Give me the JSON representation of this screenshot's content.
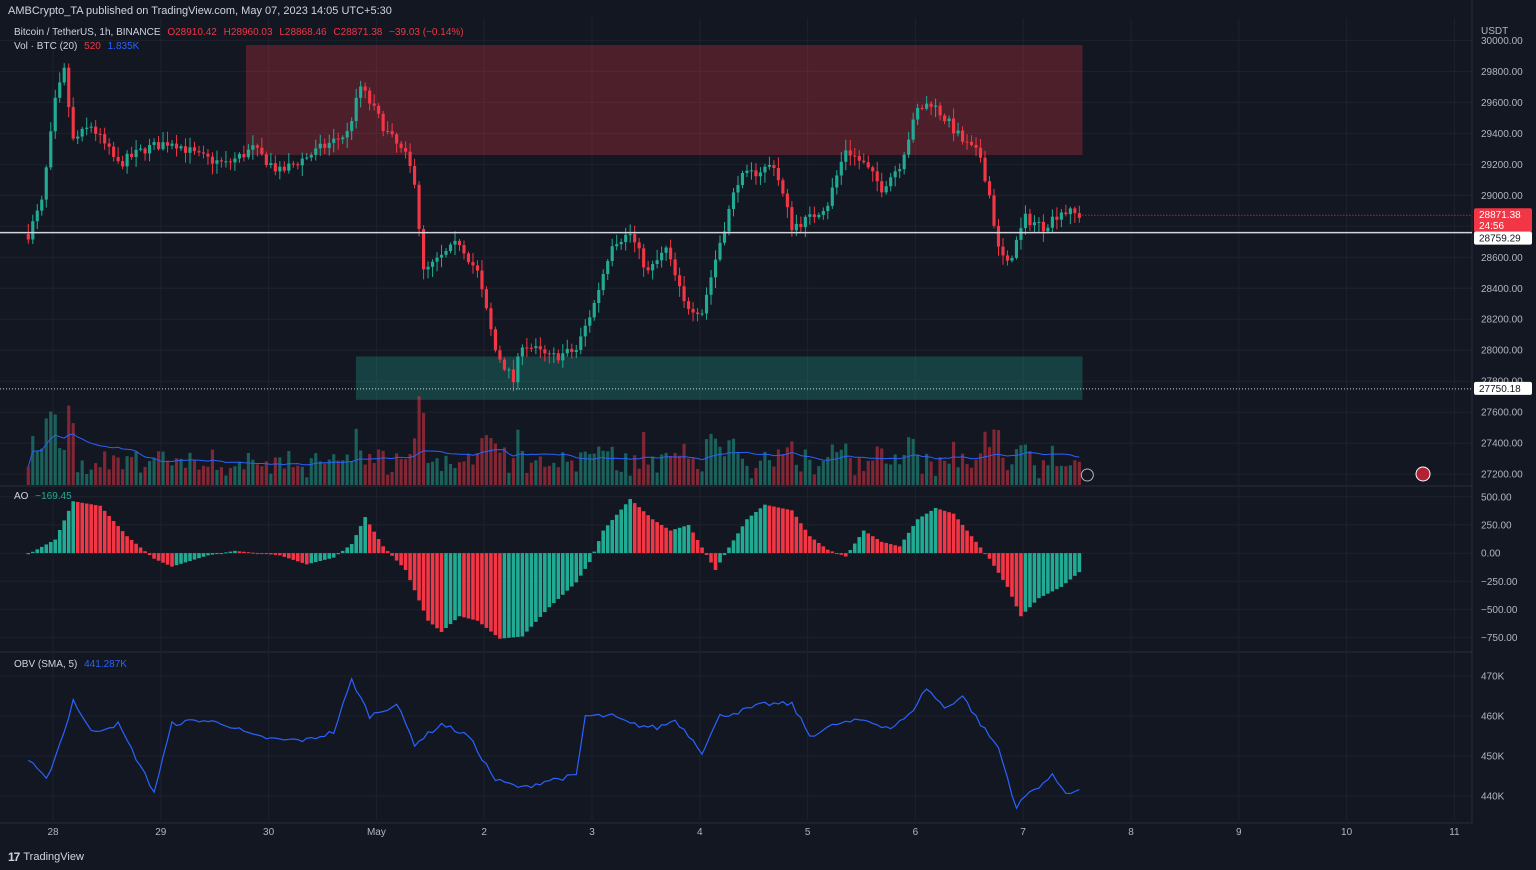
{
  "header": {
    "published": "AMBCrypto_TA published on TradingView.com, May 07, 2023 14:05 UTC+5:30"
  },
  "symbol_legend": {
    "name": "Bitcoin / TetherUS, 1h, BINANCE",
    "open": "O28910.42",
    "high": "H28960.03",
    "low": "L28868.46",
    "close": "C28871.38",
    "change": "−39.03 (−0.14%)"
  },
  "vol_legend": {
    "name": "Vol · BTC (20)",
    "v1": "520",
    "v2": "1.835K"
  },
  "ao_legend": {
    "name": "AO",
    "value": "−169.45"
  },
  "obv_legend": {
    "name": "OBV (SMA, 5)",
    "value": "441.287K"
  },
  "footer": {
    "brand": "TradingView"
  },
  "colors": {
    "up": "#22ab94",
    "down": "#f23645",
    "bg": "#131722",
    "grid": "#1e222d",
    "line": "#2962ff"
  },
  "chart_data": [
    {
      "type": "candlestick",
      "y_axis_unit": "USDT",
      "x_ticks": [
        "28",
        "29",
        "30",
        "May",
        "2",
        "3",
        "4",
        "5",
        "6",
        "7",
        "8",
        "9",
        "10",
        "11"
      ],
      "y_ticks": [
        "30000.00",
        "29800.00",
        "29600.00",
        "29400.00",
        "29200.00",
        "29000.00",
        "28800.00",
        "28600.00",
        "28400.00",
        "28200.00",
        "28000.00",
        "27800.00",
        "27600.00",
        "27400.00",
        "27200.00"
      ],
      "ylim": [
        27130,
        30080
      ],
      "price_labels": {
        "last": "28871.38",
        "countdown": "24:56",
        "level": "28759.29",
        "low_level": "27750.18"
      },
      "zones": [
        {
          "name": "resistance",
          "from_day": 2.79,
          "to_day": 10.55,
          "y_low": 29260,
          "y_high": 29970,
          "color": "#f23645"
        },
        {
          "name": "support",
          "from_day": 3.81,
          "to_day": 10.55,
          "y_low": 27680,
          "y_high": 27960,
          "color": "#22ab94"
        }
      ],
      "anchors": [
        {
          "t": 0,
          "p": 28750
        },
        {
          "t": 3,
          "p": 28950
        },
        {
          "t": 6,
          "p": 29600
        },
        {
          "t": 8,
          "p": 29800
        },
        {
          "t": 10,
          "p": 29350
        },
        {
          "t": 14,
          "p": 29450
        },
        {
          "t": 20,
          "p": 29200
        },
        {
          "t": 26,
          "p": 29300
        },
        {
          "t": 32,
          "p": 29350
        },
        {
          "t": 38,
          "p": 29250
        },
        {
          "t": 44,
          "p": 29200
        },
        {
          "t": 50,
          "p": 29300
        },
        {
          "t": 56,
          "p": 29150
        },
        {
          "t": 62,
          "p": 29250
        },
        {
          "t": 68,
          "p": 29350
        },
        {
          "t": 71,
          "p": 29400
        },
        {
          "t": 74,
          "p": 29700
        },
        {
          "t": 77,
          "p": 29550
        },
        {
          "t": 80,
          "p": 29400
        },
        {
          "t": 84,
          "p": 29250
        },
        {
          "t": 86,
          "p": 29100
        },
        {
          "t": 88,
          "p": 28500
        },
        {
          "t": 92,
          "p": 28600
        },
        {
          "t": 96,
          "p": 28700
        },
        {
          "t": 100,
          "p": 28500
        },
        {
          "t": 104,
          "p": 28000
        },
        {
          "t": 108,
          "p": 27800
        },
        {
          "t": 110,
          "p": 28050
        },
        {
          "t": 116,
          "p": 27950
        },
        {
          "t": 122,
          "p": 28000
        },
        {
          "t": 126,
          "p": 28300
        },
        {
          "t": 130,
          "p": 28700
        },
        {
          "t": 134,
          "p": 28750
        },
        {
          "t": 138,
          "p": 28500
        },
        {
          "t": 142,
          "p": 28650
        },
        {
          "t": 146,
          "p": 28300
        },
        {
          "t": 150,
          "p": 28250
        },
        {
          "t": 154,
          "p": 28700
        },
        {
          "t": 158,
          "p": 29100
        },
        {
          "t": 162,
          "p": 29150
        },
        {
          "t": 166,
          "p": 29200
        },
        {
          "t": 170,
          "p": 28800
        },
        {
          "t": 174,
          "p": 28850
        },
        {
          "t": 178,
          "p": 28950
        },
        {
          "t": 182,
          "p": 29300
        },
        {
          "t": 186,
          "p": 29200
        },
        {
          "t": 190,
          "p": 29050
        },
        {
          "t": 194,
          "p": 29200
        },
        {
          "t": 198,
          "p": 29550
        },
        {
          "t": 201,
          "p": 29600
        },
        {
          "t": 204,
          "p": 29500
        },
        {
          "t": 208,
          "p": 29350
        },
        {
          "t": 212,
          "p": 29250
        },
        {
          "t": 214,
          "p": 29000
        },
        {
          "t": 216,
          "p": 28650
        },
        {
          "t": 218,
          "p": 28550
        },
        {
          "t": 222,
          "p": 28850
        },
        {
          "t": 226,
          "p": 28800
        },
        {
          "t": 230,
          "p": 28900
        },
        {
          "t": 234,
          "p": 28871
        }
      ],
      "volume_avg_line": true
    },
    {
      "type": "histogram",
      "name": "AO",
      "y_ticks": [
        "500.00",
        "250.00",
        "0.00",
        "−250.00",
        "−500.00",
        "−750.00"
      ],
      "ylim": [
        -860,
        560
      ],
      "anchors": [
        {
          "t": 0,
          "v": -10
        },
        {
          "t": 6,
          "v": 120
        },
        {
          "t": 10,
          "v": 460
        },
        {
          "t": 16,
          "v": 420
        },
        {
          "t": 22,
          "v": 150
        },
        {
          "t": 28,
          "v": -50
        },
        {
          "t": 32,
          "v": -120
        },
        {
          "t": 40,
          "v": -20
        },
        {
          "t": 46,
          "v": 20
        },
        {
          "t": 56,
          "v": -20
        },
        {
          "t": 62,
          "v": -100
        },
        {
          "t": 68,
          "v": -40
        },
        {
          "t": 72,
          "v": 80
        },
        {
          "t": 75,
          "v": 320
        },
        {
          "t": 79,
          "v": 60
        },
        {
          "t": 84,
          "v": -150
        },
        {
          "t": 89,
          "v": -600
        },
        {
          "t": 92,
          "v": -700
        },
        {
          "t": 96,
          "v": -560
        },
        {
          "t": 100,
          "v": -600
        },
        {
          "t": 105,
          "v": -760
        },
        {
          "t": 110,
          "v": -740
        },
        {
          "t": 116,
          "v": -480
        },
        {
          "t": 122,
          "v": -260
        },
        {
          "t": 125,
          "v": -80
        },
        {
          "t": 128,
          "v": 200
        },
        {
          "t": 134,
          "v": 480
        },
        {
          "t": 139,
          "v": 300
        },
        {
          "t": 143,
          "v": 200
        },
        {
          "t": 147,
          "v": 250
        },
        {
          "t": 150,
          "v": 50
        },
        {
          "t": 153,
          "v": -150
        },
        {
          "t": 156,
          "v": 50
        },
        {
          "t": 160,
          "v": 300
        },
        {
          "t": 164,
          "v": 430
        },
        {
          "t": 170,
          "v": 380
        },
        {
          "t": 174,
          "v": 150
        },
        {
          "t": 178,
          "v": 30
        },
        {
          "t": 182,
          "v": -30
        },
        {
          "t": 186,
          "v": 200
        },
        {
          "t": 190,
          "v": 100
        },
        {
          "t": 194,
          "v": 60
        },
        {
          "t": 198,
          "v": 300
        },
        {
          "t": 202,
          "v": 400
        },
        {
          "t": 206,
          "v": 350
        },
        {
          "t": 210,
          "v": 150
        },
        {
          "t": 214,
          "v": -50
        },
        {
          "t": 218,
          "v": -300
        },
        {
          "t": 221,
          "v": -560
        },
        {
          "t": 225,
          "v": -400
        },
        {
          "t": 230,
          "v": -300
        },
        {
          "t": 234,
          "v": -169
        }
      ]
    },
    {
      "type": "line",
      "name": "OBV (SMA, 5)",
      "y_ticks": [
        "470K",
        "460K",
        "450K",
        "440K"
      ],
      "ylim": [
        434000,
        475000
      ],
      "anchors": [
        {
          "t": 0,
          "v": 449000
        },
        {
          "t": 4,
          "v": 444000
        },
        {
          "t": 8,
          "v": 456000
        },
        {
          "t": 10,
          "v": 464000
        },
        {
          "t": 14,
          "v": 456000
        },
        {
          "t": 20,
          "v": 458000
        },
        {
          "t": 28,
          "v": 441000
        },
        {
          "t": 32,
          "v": 458000
        },
        {
          "t": 38,
          "v": 459000
        },
        {
          "t": 44,
          "v": 458000
        },
        {
          "t": 50,
          "v": 455000
        },
        {
          "t": 56,
          "v": 454000
        },
        {
          "t": 62,
          "v": 454000
        },
        {
          "t": 68,
          "v": 456000
        },
        {
          "t": 72,
          "v": 469000
        },
        {
          "t": 76,
          "v": 460000
        },
        {
          "t": 82,
          "v": 463000
        },
        {
          "t": 86,
          "v": 453000
        },
        {
          "t": 92,
          "v": 458000
        },
        {
          "t": 98,
          "v": 455000
        },
        {
          "t": 104,
          "v": 444000
        },
        {
          "t": 110,
          "v": 442000
        },
        {
          "t": 116,
          "v": 444000
        },
        {
          "t": 122,
          "v": 445000
        },
        {
          "t": 124,
          "v": 460000
        },
        {
          "t": 130,
          "v": 460000
        },
        {
          "t": 134,
          "v": 458000
        },
        {
          "t": 140,
          "v": 457000
        },
        {
          "t": 144,
          "v": 459000
        },
        {
          "t": 148,
          "v": 454000
        },
        {
          "t": 150,
          "v": 451000
        },
        {
          "t": 154,
          "v": 460000
        },
        {
          "t": 158,
          "v": 461000
        },
        {
          "t": 164,
          "v": 463000
        },
        {
          "t": 170,
          "v": 463000
        },
        {
          "t": 174,
          "v": 455000
        },
        {
          "t": 180,
          "v": 458000
        },
        {
          "t": 186,
          "v": 459000
        },
        {
          "t": 192,
          "v": 457000
        },
        {
          "t": 196,
          "v": 460000
        },
        {
          "t": 200,
          "v": 467000
        },
        {
          "t": 204,
          "v": 462000
        },
        {
          "t": 208,
          "v": 465000
        },
        {
          "t": 212,
          "v": 458000
        },
        {
          "t": 216,
          "v": 452000
        },
        {
          "t": 220,
          "v": 437000
        },
        {
          "t": 222,
          "v": 440000
        },
        {
          "t": 228,
          "v": 445000
        },
        {
          "t": 231,
          "v": 441000
        },
        {
          "t": 234,
          "v": 441287
        }
      ]
    }
  ]
}
